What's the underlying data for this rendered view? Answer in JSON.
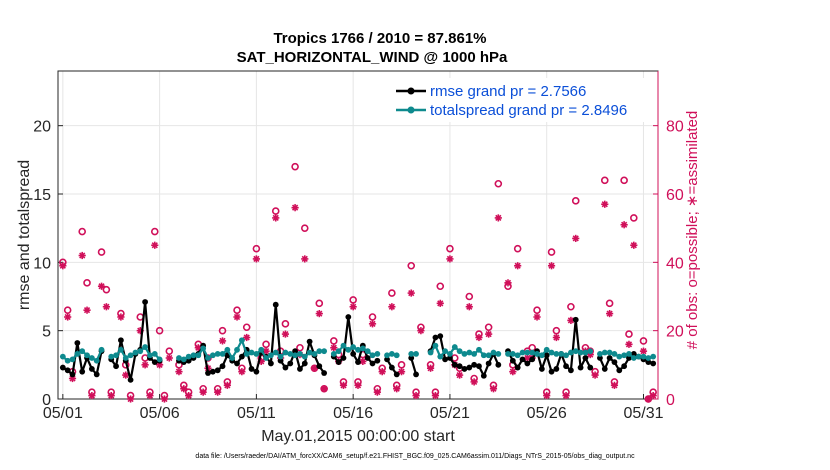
{
  "chart_data": {
    "type": "line",
    "title_line1": "Tropics 1766 / 2010 = 87.861%",
    "title_line2": "SAT_HORIZONTAL_WIND @ 1000 hPa",
    "xlabel": "May.01,2015 00:00:00 start",
    "ylabel": "rmse and totalspread",
    "ylabel_right": "# of obs: o=possible; ∗=assimilated",
    "footnote": "data file: /Users/raeder/DAI/ATM_forcXX/CAM6_setup/f.e21.FHIST_BGC.f09_025.CAM6assim.011/Diags_NTrS_2015-05/obs_diag_output.nc",
    "xlim": [
      0.75,
      31.75
    ],
    "ylim": [
      0,
      24
    ],
    "ylim_right": [
      0,
      96
    ],
    "x_tick_values": [
      1,
      6,
      11,
      16,
      21,
      26,
      31
    ],
    "x_ticks": [
      "05/01",
      "05/06",
      "05/11",
      "05/16",
      "05/21",
      "05/26",
      "05/31"
    ],
    "y_ticks": [
      "0",
      "5",
      "10",
      "15",
      "20"
    ],
    "y_tick_values": [
      0,
      5,
      10,
      15,
      20
    ],
    "y_ticks_right": [
      "0",
      "20",
      "40",
      "60",
      "80"
    ],
    "y_tick_values_right": [
      0,
      20,
      40,
      60,
      80
    ],
    "series": [
      {
        "name": "rmse",
        "legend": "rmse grand pr = 2.7566",
        "color": "#000000",
        "x": [
          1.0,
          1.25,
          1.5,
          1.75,
          2.0,
          2.25,
          2.5,
          2.75,
          3.0,
          3.5,
          3.75,
          4.0,
          4.25,
          4.5,
          4.75,
          5.0,
          5.25,
          5.5,
          5.75,
          6.0,
          7.0,
          7.25,
          7.5,
          7.75,
          8.0,
          8.25,
          8.5,
          8.75,
          9.0,
          9.25,
          9.5,
          9.75,
          10.0,
          10.25,
          10.5,
          10.75,
          11.0,
          11.25,
          11.5,
          11.75,
          12.0,
          12.25,
          12.5,
          12.75,
          13.0,
          13.25,
          13.5,
          13.75,
          14.0,
          14.25,
          14.5,
          15.0,
          15.25,
          15.5,
          15.75,
          16.0,
          16.25,
          16.5,
          16.75,
          17.0,
          17.25,
          17.75,
          18.0,
          18.25,
          19.0,
          19.25,
          20.0,
          20.25,
          20.5,
          20.75,
          21.0,
          21.25,
          21.5,
          21.75,
          22.0,
          22.25,
          22.5,
          22.75,
          23.0,
          23.25,
          23.5,
          24.0,
          24.25,
          24.5,
          24.75,
          25.0,
          25.25,
          25.5,
          25.75,
          26.0,
          26.25,
          26.5,
          26.75,
          27.0,
          27.25,
          27.5,
          27.75,
          28.0,
          28.25,
          28.75,
          29.0,
          29.25,
          29.5,
          29.75,
          30.0,
          30.25,
          30.5,
          30.75,
          31.0,
          31.25,
          31.5
        ],
        "y": [
          2.3,
          2.1,
          1.8,
          4.1,
          2.0,
          3.0,
          2.2,
          1.8,
          3.5,
          2.9,
          2.4,
          4.3,
          2.8,
          1.4,
          3.3,
          3.6,
          7.1,
          3.0,
          2.7,
          2.8,
          2.8,
          2.7,
          2.8,
          3.0,
          3.3,
          3.9,
          1.9,
          2.0,
          2.1,
          2.4,
          3.2,
          2.8,
          2.6,
          3.1,
          3.6,
          2.2,
          2.0,
          3.4,
          3.1,
          2.6,
          6.9,
          2.8,
          2.3,
          2.6,
          3.5,
          2.2,
          2.6,
          4.2,
          3.2,
          2.4,
          1.9,
          3.1,
          2.7,
          3.0,
          6.0,
          3.3,
          2.7,
          3.9,
          3.0,
          2.6,
          2.8,
          2.9,
          2.3,
          1.8,
          3.0,
          1.8,
          3.5,
          4.5,
          4.6,
          2.9,
          3.0,
          2.5,
          2.4,
          2.2,
          2.3,
          2.5,
          2.4,
          1.7,
          2.6,
          3.3,
          2.5,
          3.5,
          2.8,
          2.3,
          2.9,
          2.6,
          2.9,
          3.5,
          2.2,
          3.2,
          2.0,
          2.2,
          3.3,
          2.4,
          2.1,
          5.8,
          2.3,
          3.0,
          2.3,
          3.0,
          2.2,
          3.0,
          2.7,
          2.1,
          2.4,
          3.0,
          3.3,
          3.1,
          2.9,
          2.7,
          2.6
        ],
        "marker": "dot"
      },
      {
        "name": "totalspread",
        "legend": "totalspread grand pr = 2.8496",
        "color": "#0e8a8e",
        "x": [
          1.0,
          1.25,
          1.5,
          1.75,
          2.0,
          2.25,
          2.5,
          2.75,
          3.0,
          3.5,
          3.75,
          4.0,
          4.25,
          4.5,
          4.75,
          5.0,
          5.25,
          5.5,
          5.75,
          6.0,
          7.0,
          7.25,
          7.5,
          7.75,
          8.0,
          8.25,
          8.5,
          8.75,
          9.0,
          9.25,
          9.5,
          9.75,
          10.0,
          10.25,
          10.5,
          10.75,
          11.0,
          11.25,
          11.5,
          11.75,
          12.0,
          12.25,
          12.5,
          12.75,
          13.0,
          13.25,
          13.5,
          13.75,
          14.0,
          14.25,
          14.5,
          15.0,
          15.25,
          15.5,
          15.75,
          16.0,
          16.25,
          16.5,
          16.75,
          17.0,
          17.25,
          17.75,
          18.0,
          18.25,
          19.0,
          19.25,
          20.0,
          20.25,
          20.5,
          20.75,
          21.0,
          21.25,
          21.5,
          21.75,
          22.0,
          22.25,
          22.5,
          22.75,
          23.0,
          23.25,
          23.5,
          24.0,
          24.25,
          24.5,
          24.75,
          25.0,
          25.25,
          25.5,
          25.75,
          26.0,
          26.25,
          26.5,
          26.75,
          27.0,
          27.25,
          27.5,
          27.75,
          28.0,
          28.25,
          28.75,
          29.0,
          29.25,
          29.5,
          29.75,
          30.0,
          30.25,
          30.5,
          30.75,
          31.0,
          31.25,
          31.5
        ],
        "y": [
          3.1,
          2.8,
          2.9,
          3.3,
          3.5,
          3.2,
          3.0,
          2.8,
          3.6,
          3.1,
          3.2,
          3.6,
          3.0,
          3.2,
          3.4,
          3.5,
          3.8,
          3.2,
          3.3,
          2.9,
          3.0,
          2.9,
          3.1,
          3.2,
          3.2,
          3.7,
          3.0,
          3.2,
          3.3,
          3.3,
          3.6,
          3.0,
          3.6,
          4.3,
          3.3,
          3.4,
          3.3,
          3.6,
          3.0,
          3.2,
          3.4,
          3.1,
          3.4,
          3.3,
          3.2,
          3.3,
          3.1,
          3.4,
          3.3,
          3.5,
          3.5,
          3.3,
          3.5,
          3.9,
          3.6,
          3.8,
          3.6,
          3.7,
          3.5,
          3.2,
          3.3,
          3.2,
          3.3,
          3.2,
          3.3,
          3.3,
          3.4,
          3.9,
          3.1,
          3.5,
          3.3,
          3.8,
          3.5,
          3.3,
          3.4,
          3.3,
          3.6,
          3.2,
          3.2,
          3.4,
          3.3,
          3.3,
          3.3,
          3.2,
          3.4,
          3.4,
          3.4,
          3.3,
          3.2,
          3.6,
          3.4,
          3.3,
          3.3,
          3.2,
          3.4,
          3.5,
          3.4,
          3.4,
          3.5,
          3.3,
          3.4,
          3.4,
          3.3,
          3.1,
          3.2,
          3.3,
          3.0,
          3.1,
          3.1,
          3.0,
          3.1
        ],
        "marker": "dot"
      },
      {
        "name": "possible",
        "color": "#d0105a",
        "axis": "right",
        "marker": "circle",
        "x": [
          1.0,
          1.25,
          1.5,
          2.0,
          2.25,
          2.5,
          3.0,
          3.25,
          3.5,
          4.0,
          4.25,
          4.5,
          5.0,
          5.25,
          5.5,
          5.75,
          6.0,
          6.25,
          6.5,
          7.0,
          7.25,
          7.5,
          8.0,
          8.25,
          8.5,
          9.0,
          9.25,
          9.5,
          10.0,
          10.25,
          10.5,
          11.0,
          11.25,
          11.5,
          12.0,
          12.25,
          12.5,
          13.0,
          13.25,
          13.5,
          14.0,
          14.25,
          14.5,
          15.0,
          15.25,
          15.5,
          16.0,
          16.25,
          16.5,
          17.0,
          17.25,
          17.5,
          18.0,
          18.25,
          18.5,
          19.0,
          19.25,
          19.5,
          20.0,
          20.25,
          20.5,
          21.0,
          21.25,
          21.5,
          22.0,
          22.25,
          22.5,
          23.0,
          23.25,
          23.5,
          24.0,
          24.25,
          24.5,
          25.0,
          25.25,
          25.5,
          26.0,
          26.25,
          26.5,
          27.0,
          27.25,
          27.5,
          28.0,
          28.25,
          28.5,
          29.0,
          29.25,
          29.5,
          30.0,
          30.25,
          30.5,
          31.0,
          31.25,
          31.5
        ],
        "y": [
          40,
          26,
          8,
          49,
          34,
          2,
          43,
          32,
          2,
          25,
          10,
          1,
          24,
          12,
          2,
          49,
          20,
          1,
          14,
          10,
          4,
          2,
          16,
          3,
          12,
          3,
          20,
          5,
          26,
          9,
          21,
          44,
          12,
          16,
          55,
          14,
          22,
          68,
          15,
          50,
          9,
          28,
          3,
          17,
          13,
          5,
          29,
          5,
          13,
          24,
          3,
          9,
          31,
          4,
          10,
          39,
          2,
          21,
          10,
          2,
          33,
          44,
          12,
          9,
          30,
          6,
          19,
          21,
          4,
          63,
          33,
          10,
          44,
          14,
          15,
          26,
          2,
          43,
          20,
          2,
          27,
          58,
          15,
          14,
          8,
          64,
          28,
          5,
          64,
          19,
          53,
          17,
          0,
          2
        ],
        "values_total": 94
      },
      {
        "name": "assimilated",
        "color": "#d0105a",
        "axis": "right",
        "marker": "star",
        "x": [
          1.0,
          1.25,
          1.5,
          2.0,
          2.25,
          2.5,
          3.0,
          3.25,
          3.5,
          4.0,
          4.25,
          4.5,
          5.0,
          5.25,
          5.5,
          5.75,
          6.0,
          6.25,
          6.5,
          7.0,
          7.25,
          7.5,
          8.0,
          8.25,
          8.5,
          9.0,
          9.25,
          9.5,
          10.0,
          10.25,
          10.5,
          11.0,
          11.25,
          11.5,
          12.0,
          12.25,
          12.5,
          13.0,
          13.25,
          13.5,
          14.0,
          14.25,
          14.5,
          15.0,
          15.25,
          15.5,
          16.0,
          16.25,
          16.5,
          17.0,
          17.25,
          17.5,
          18.0,
          18.25,
          18.5,
          19.0,
          19.25,
          19.5,
          20.0,
          20.25,
          20.5,
          21.0,
          21.25,
          21.5,
          22.0,
          22.25,
          22.5,
          23.0,
          23.25,
          23.5,
          24.0,
          24.25,
          24.5,
          25.0,
          25.25,
          25.5,
          26.0,
          26.25,
          26.5,
          27.0,
          27.25,
          27.5,
          28.0,
          28.25,
          28.5,
          29.0,
          29.25,
          29.5,
          30.0,
          30.25,
          30.5,
          31.0,
          31.25,
          31.5
        ],
        "y": [
          39,
          24,
          6,
          42,
          26,
          1,
          33,
          27,
          1,
          24,
          7,
          0,
          20,
          10,
          1,
          45,
          10,
          0,
          12,
          8,
          3,
          1,
          15,
          2,
          9,
          2,
          17,
          4,
          24,
          8,
          18,
          41,
          11,
          14,
          53,
          12,
          19,
          56,
          13,
          41,
          9,
          25,
          3,
          15,
          11,
          4,
          27,
          4,
          11,
          22,
          2,
          8,
          27,
          3,
          8,
          31,
          1,
          20,
          9,
          1,
          28,
          41,
          10,
          7,
          27,
          5,
          18,
          19,
          3,
          53,
          34,
          8,
          39,
          12,
          12,
          24,
          1,
          39,
          18,
          1,
          23,
          47,
          14,
          13,
          7,
          57,
          25,
          4,
          51,
          16,
          45,
          14,
          0,
          1
        ]
      }
    ]
  }
}
